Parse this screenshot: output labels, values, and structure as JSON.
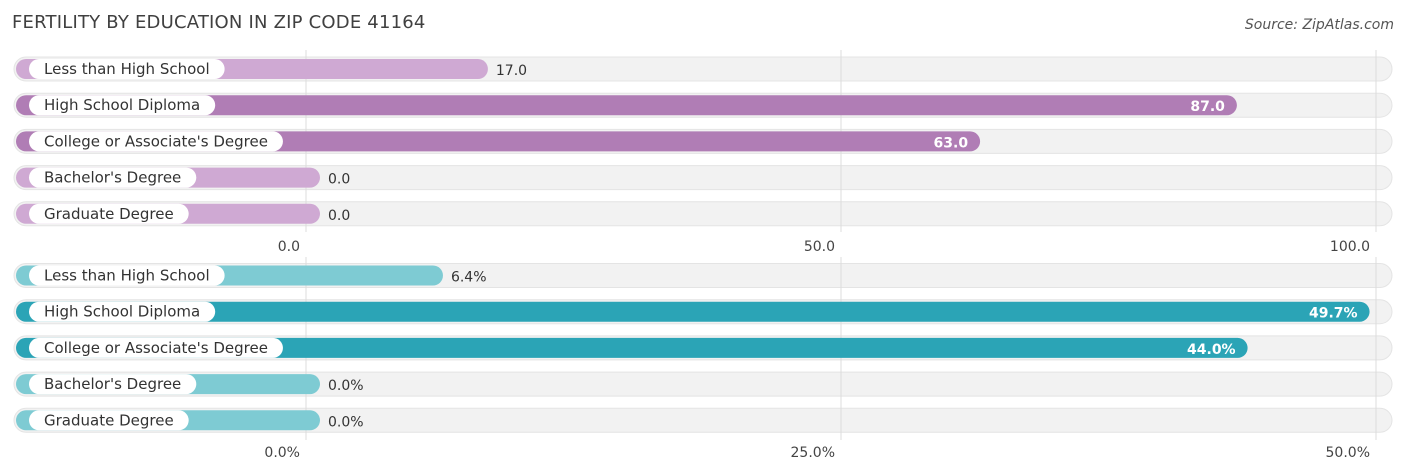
{
  "header": {
    "title": "FERTILITY BY EDUCATION IN ZIP CODE 41164",
    "source": "Source: ZipAtlas.com"
  },
  "chart_data": [
    {
      "type": "bar",
      "orientation": "horizontal",
      "title": "FERTILITY BY EDUCATION IN ZIP CODE 41164",
      "categories": [
        "Less than High School",
        "High School Diploma",
        "College or Associate's Degree",
        "Bachelor's Degree",
        "Graduate Degree"
      ],
      "values": [
        17.0,
        87.0,
        63.0,
        0.0,
        0.0
      ],
      "value_labels": [
        "17.0",
        "87.0",
        "63.0",
        "0.0",
        "0.0"
      ],
      "xlim": [
        0,
        100
      ],
      "ticks": [
        0,
        50,
        100
      ],
      "tick_labels": [
        "0.0",
        "50.0",
        "100.0"
      ],
      "colors": {
        "strong": "#b07db5",
        "light": "#cfa9d3"
      }
    },
    {
      "type": "bar",
      "orientation": "horizontal",
      "categories": [
        "Less than High School",
        "High School Diploma",
        "College or Associate's Degree",
        "Bachelor's Degree",
        "Graduate Degree"
      ],
      "values": [
        6.4,
        49.7,
        44.0,
        0.0,
        0.0
      ],
      "value_labels": [
        "6.4%",
        "49.7%",
        "44.0%",
        "0.0%",
        "0.0%"
      ],
      "xlim": [
        0,
        50
      ],
      "ticks": [
        0,
        25,
        50
      ],
      "tick_labels": [
        "0.0%",
        "25.0%",
        "50.0%"
      ],
      "colors": {
        "strong": "#2ba4b6",
        "light": "#7ecbd3"
      }
    }
  ]
}
